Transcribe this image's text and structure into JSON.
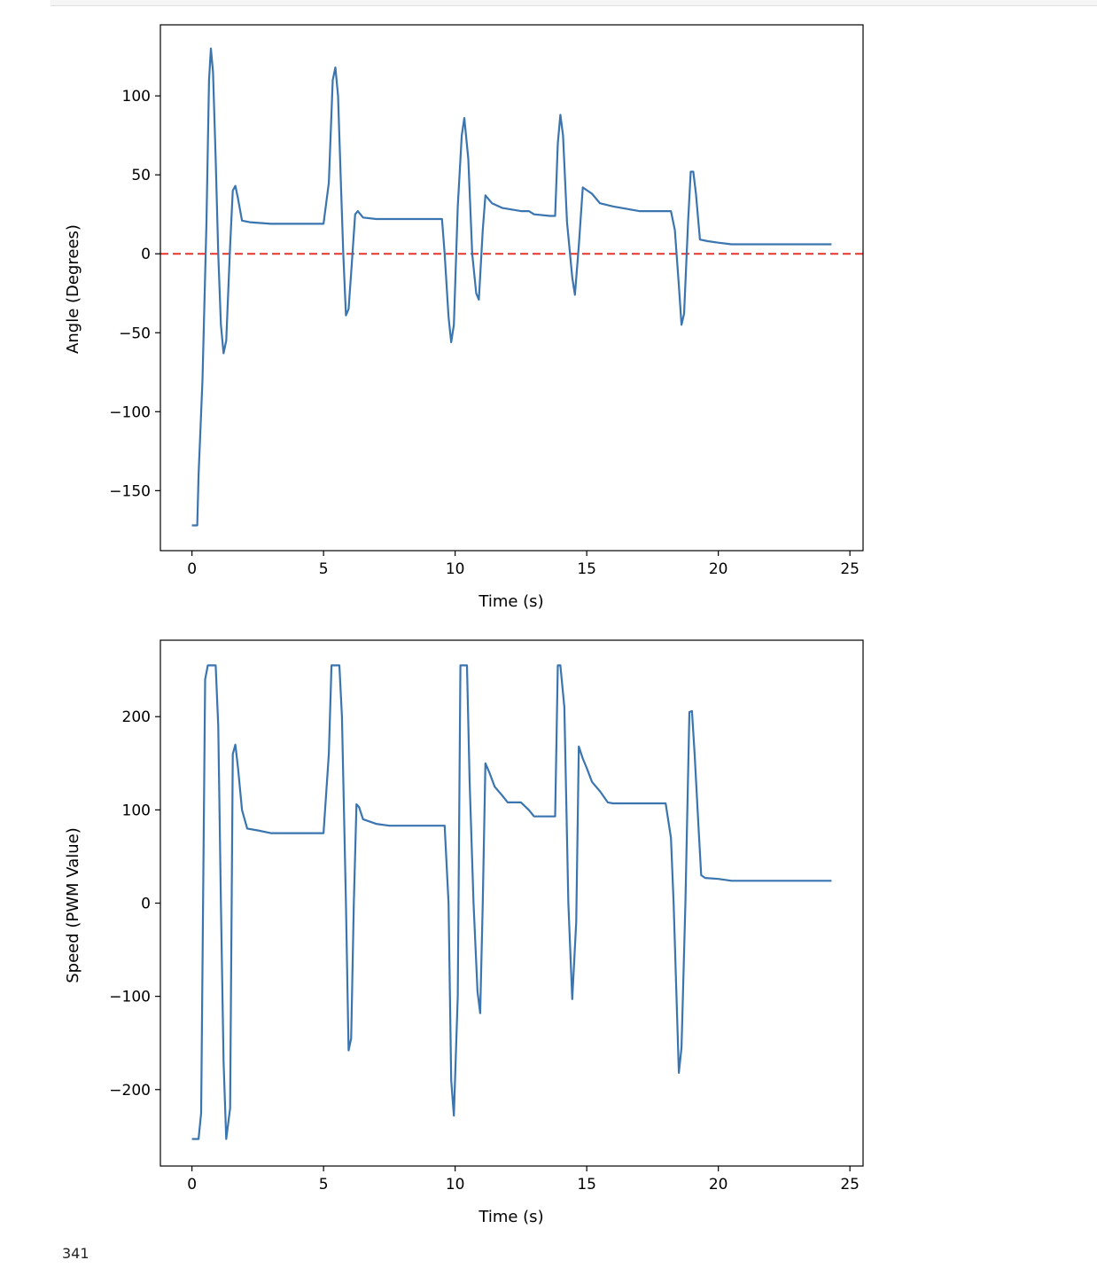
{
  "output_text": "341",
  "colors": {
    "series": "#3a75b0",
    "reference": "#e8332a",
    "axes": "#000000"
  },
  "chart_data": [
    {
      "type": "line",
      "xlabel": "Time (s)",
      "ylabel": "Angle (Degrees)",
      "xlim": [
        -1.2,
        25.5
      ],
      "ylim": [
        -188,
        145
      ],
      "xticks": [
        0,
        5,
        10,
        15,
        20,
        25
      ],
      "yticks": [
        -150,
        -100,
        -50,
        0,
        50,
        100
      ],
      "xtick_labels": [
        "0",
        "5",
        "10",
        "15",
        "20",
        "25"
      ],
      "ytick_labels": [
        "−150",
        "−100",
        "−50",
        "0",
        "50",
        "100"
      ],
      "reference_line": {
        "y": 0,
        "style": "dashed"
      },
      "series": [
        {
          "x": [
            0,
            0.2,
            0.25,
            0.4,
            0.55,
            0.65,
            0.72,
            0.8,
            0.9,
            1.0,
            1.1,
            1.2,
            1.3,
            1.45,
            1.55,
            1.65,
            1.75,
            1.9,
            2.2,
            3.0,
            4.0,
            5.0,
            5.2,
            5.35,
            5.45,
            5.55,
            5.65,
            5.75,
            5.85,
            5.95,
            6.05,
            6.2,
            6.3,
            6.5,
            7.0,
            9.5,
            9.6,
            9.75,
            9.85,
            9.95,
            10.1,
            10.25,
            10.35,
            10.5,
            10.65,
            10.8,
            10.9,
            11.05,
            11.15,
            11.4,
            11.8,
            12.5,
            12.8,
            13.0,
            13.6,
            13.8,
            13.9,
            14.0,
            14.1,
            14.25,
            14.45,
            14.55,
            14.7,
            14.85,
            15.2,
            15.5,
            16.0,
            17.0,
            18.0,
            18.2,
            18.35,
            18.5,
            18.6,
            18.7,
            18.85,
            18.95,
            19.05,
            19.15,
            19.3,
            19.6,
            20.0,
            20.5,
            24.3
          ],
          "y": [
            -172,
            -172,
            -140,
            -80,
            20,
            110,
            130,
            115,
            60,
            0,
            -45,
            -63,
            -55,
            5,
            40,
            43,
            35,
            21,
            20,
            19,
            19,
            19,
            45,
            110,
            118,
            100,
            50,
            0,
            -39,
            -35,
            -12,
            25,
            27,
            23,
            22,
            22,
            0,
            -40,
            -56,
            -45,
            30,
            75,
            86,
            60,
            0,
            -25,
            -29,
            15,
            37,
            32,
            29,
            27,
            27,
            25,
            24,
            24,
            70,
            88,
            75,
            20,
            -15,
            -26,
            5,
            42,
            38,
            32,
            30,
            27,
            27,
            27,
            15,
            -20,
            -45,
            -38,
            20,
            52,
            52,
            38,
            9,
            8,
            7,
            6,
            6
          ]
        }
      ]
    },
    {
      "type": "line",
      "xlabel": "Time (s)",
      "ylabel": "Speed (PWM Value)",
      "xlim": [
        -1.2,
        25.5
      ],
      "ylim": [
        -282,
        282
      ],
      "xticks": [
        0,
        5,
        10,
        15,
        20,
        25
      ],
      "yticks": [
        -200,
        -100,
        0,
        100,
        200
      ],
      "xtick_labels": [
        "0",
        "5",
        "10",
        "15",
        "20",
        "25"
      ],
      "ytick_labels": [
        "−200",
        "−100",
        "0",
        "100",
        "200"
      ],
      "series": [
        {
          "x": [
            0,
            0.25,
            0.35,
            0.5,
            0.6,
            0.9,
            1.0,
            1.1,
            1.2,
            1.3,
            1.45,
            1.55,
            1.65,
            1.75,
            1.9,
            2.1,
            2.5,
            3.0,
            4.0,
            5.0,
            5.2,
            5.3,
            5.6,
            5.7,
            5.85,
            5.95,
            6.05,
            6.15,
            6.25,
            6.35,
            6.5,
            7.0,
            7.5,
            9.5,
            9.6,
            9.75,
            9.85,
            9.95,
            10.1,
            10.2,
            10.45,
            10.55,
            10.7,
            10.85,
            10.95,
            11.05,
            11.15,
            11.3,
            11.5,
            11.8,
            12.0,
            12.5,
            12.8,
            13.0,
            13.8,
            13.9,
            14.0,
            14.15,
            14.3,
            14.45,
            14.6,
            14.7,
            14.85,
            15.0,
            15.2,
            15.5,
            15.8,
            16.0,
            16.5,
            18.0,
            18.2,
            18.3,
            18.5,
            18.6,
            18.75,
            18.9,
            19.0,
            19.1,
            19.25,
            19.35,
            19.5,
            20.0,
            20.5,
            24.3
          ],
          "y": [
            -253,
            -253,
            -225,
            240,
            255,
            255,
            190,
            0,
            -170,
            -253,
            -220,
            160,
            170,
            145,
            100,
            80,
            78,
            75,
            75,
            75,
            160,
            255,
            255,
            200,
            0,
            -158,
            -145,
            0,
            106,
            103,
            90,
            85,
            83,
            83,
            83,
            0,
            -190,
            -228,
            -100,
            255,
            255,
            130,
            0,
            -95,
            -118,
            0,
            150,
            140,
            125,
            115,
            108,
            108,
            100,
            93,
            93,
            255,
            255,
            210,
            0,
            -103,
            -20,
            168,
            155,
            145,
            130,
            120,
            108,
            107,
            107,
            107,
            70,
            0,
            -182,
            -155,
            0,
            205,
            206,
            160,
            80,
            30,
            27,
            26,
            24,
            24
          ]
        }
      ]
    }
  ]
}
